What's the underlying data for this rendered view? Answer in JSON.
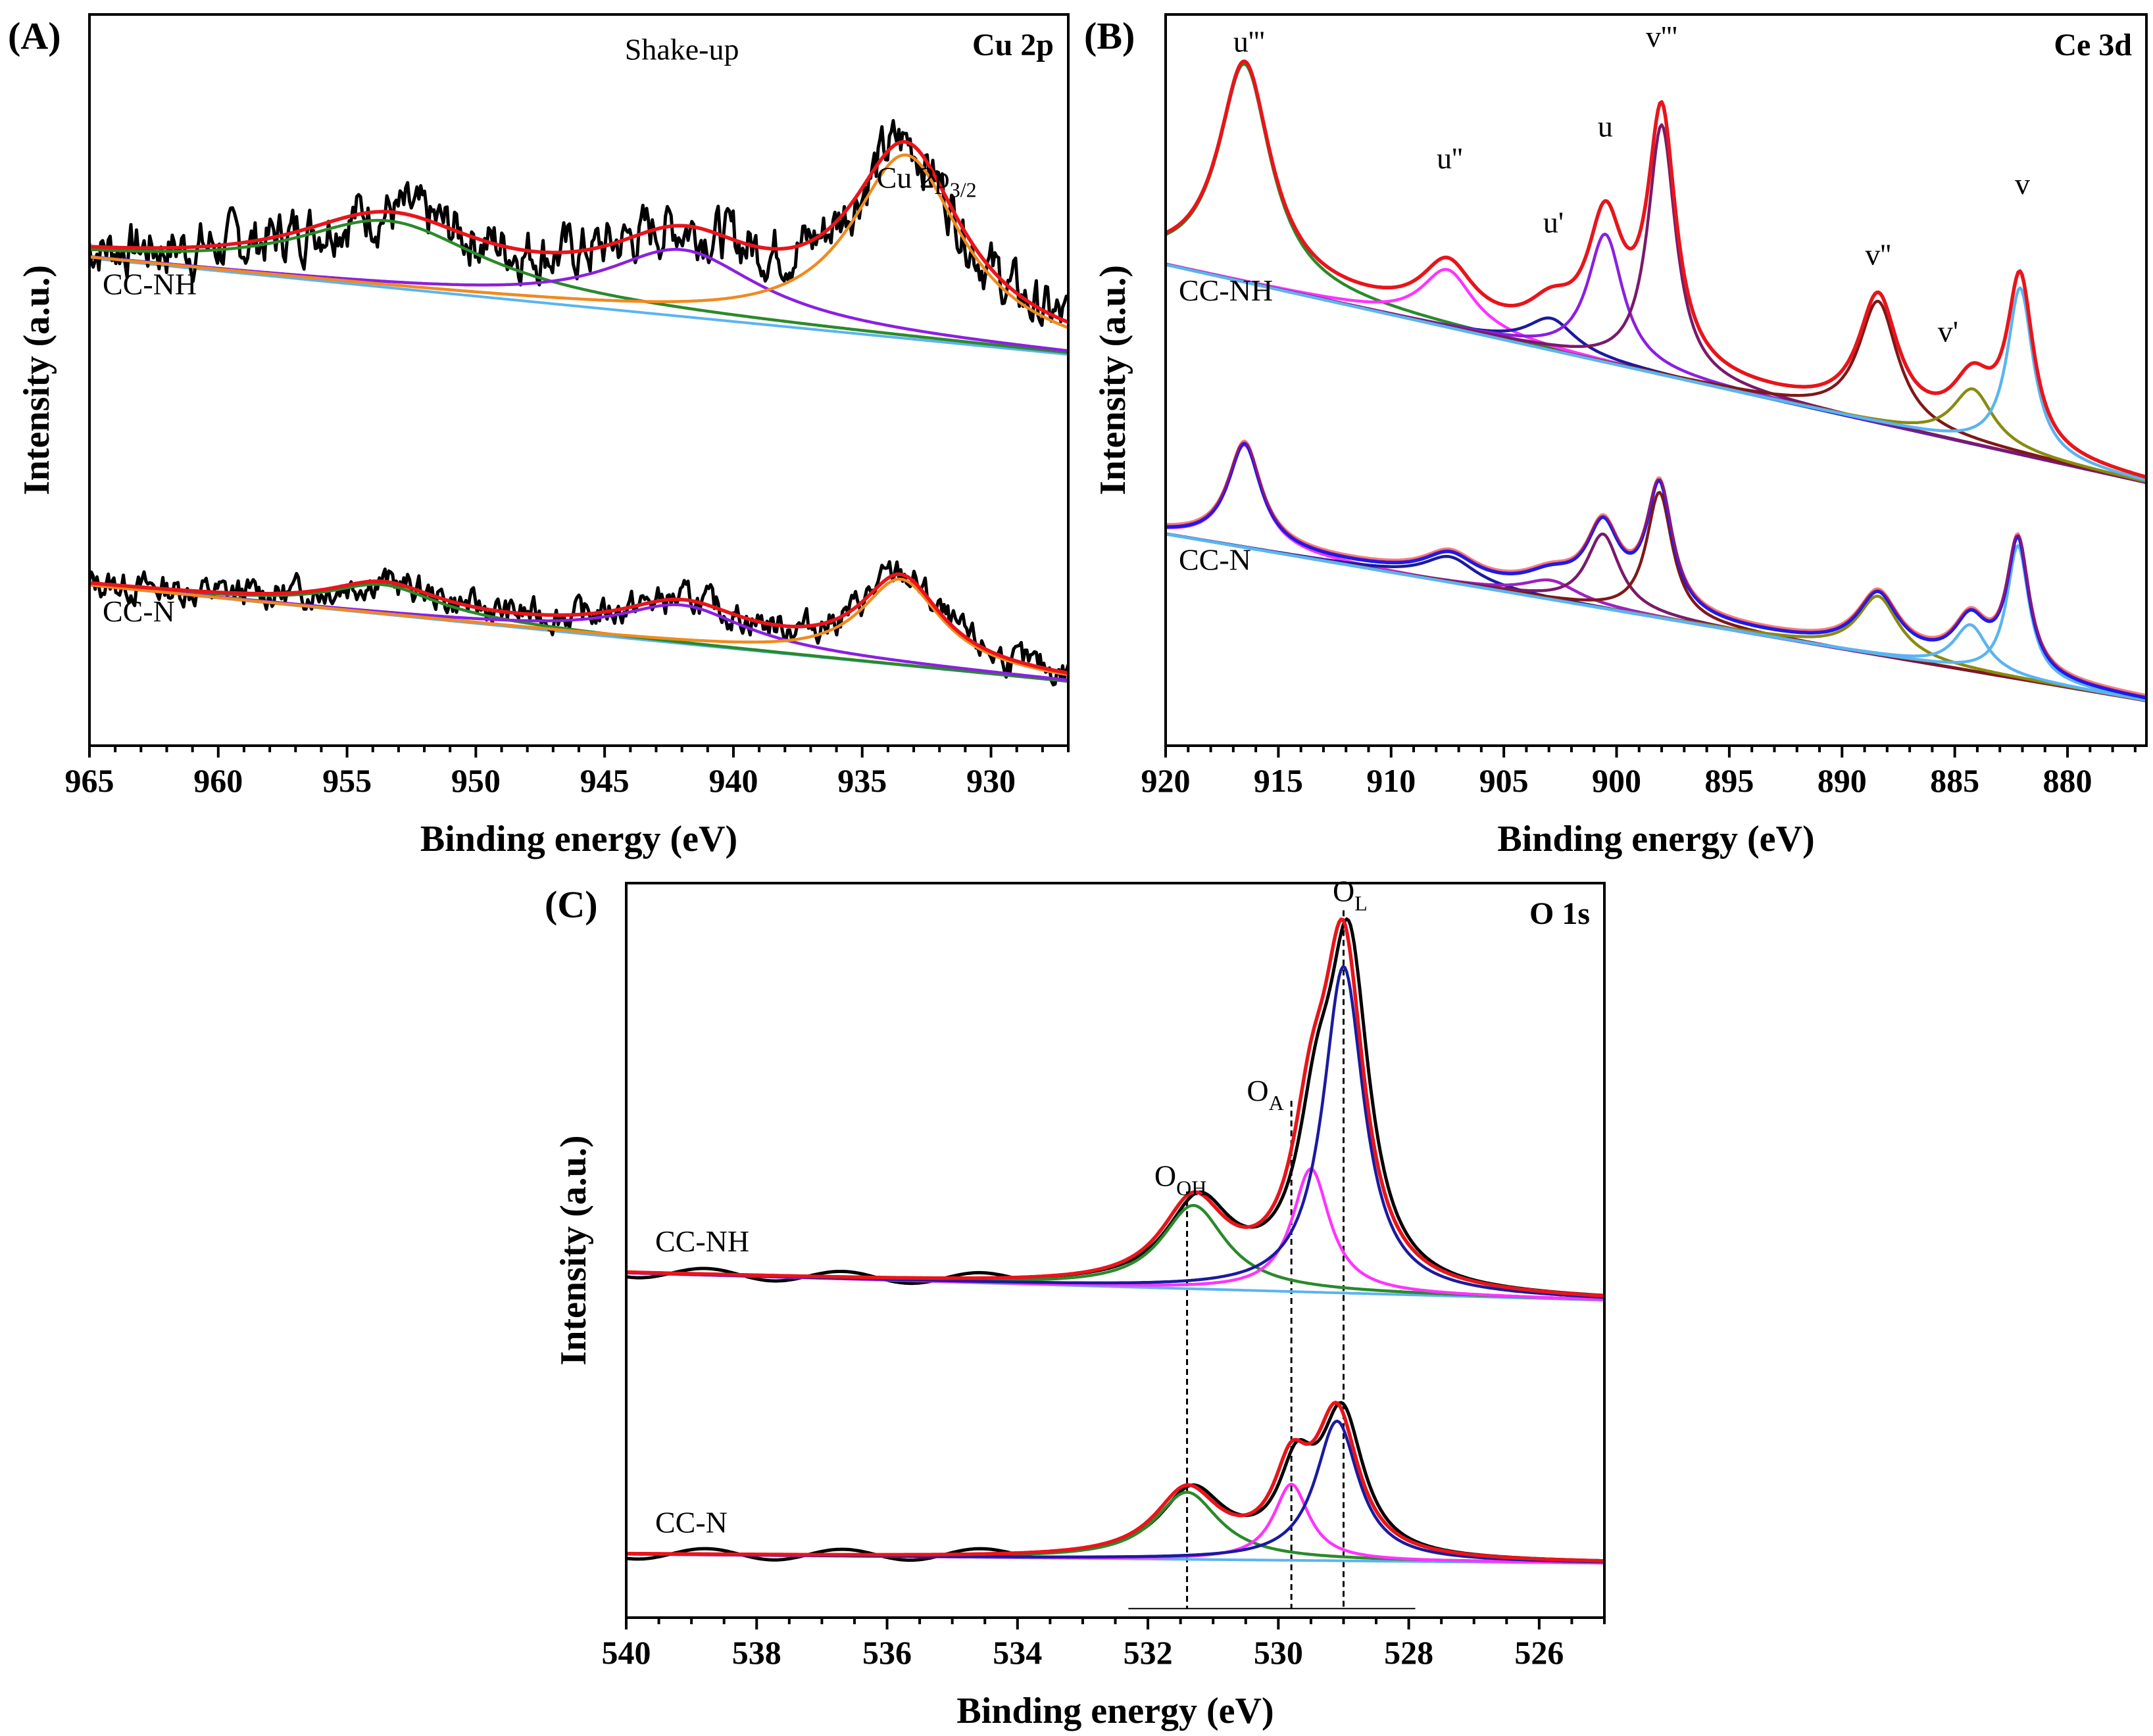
{
  "chart_data": [
    {
      "id": "A",
      "type": "line",
      "panel_label": "(A)",
      "title": "Cu 2p",
      "xlabel": "Binding energy (eV)",
      "ylabel": "Intensity (a.u.)",
      "xlim": [
        965,
        927
      ],
      "x_ticks": [
        965,
        960,
        955,
        950,
        945,
        940,
        935,
        930
      ],
      "annotations": [
        {
          "text": "Shake-up",
          "x": 942,
          "y": 1.55
        },
        {
          "text": "Cu 2p",
          "sub": "3/2",
          "x": 932.5,
          "y": 0.55
        }
      ],
      "traces": [
        {
          "name": "CC-NH",
          "offset": 0.55,
          "bg": [
            0.0,
            -0.75
          ],
          "peaks": [
            [
              953.4,
              0.52,
              4.5,
              "#2a8a2a"
            ],
            [
              942.0,
              0.52,
              3.6,
              "#8b20e0"
            ],
            [
              933.3,
              1.43,
              2.6,
              "#f08a20"
            ]
          ],
          "noise": 0.16,
          "seed": 7
        },
        {
          "name": "CC-N",
          "offset": 0.0,
          "bg": [
            -2.55,
            -3.3
          ],
          "peaks": [
            [
              953.6,
              0.23,
              2.6,
              "#2a8a2a"
            ],
            [
              942.0,
              0.3,
              3.0,
              "#8b20e0"
            ],
            [
              933.5,
              0.67,
              1.9,
              "#f08a20"
            ]
          ],
          "noise": 0.09,
          "seed": 13
        }
      ],
      "ylim": [
        -3.8,
        1.9
      ]
    },
    {
      "id": "B",
      "type": "line",
      "panel_label": "(B)",
      "title": "Ce 3d",
      "xlabel": "Binding energy (eV)",
      "ylabel": "Intensity (a.u.)",
      "xlim": [
        920,
        876.5
      ],
      "x_ticks": [
        920,
        915,
        910,
        905,
        900,
        895,
        890,
        885,
        880
      ],
      "annotations": [
        {
          "text": "u'''",
          "x": 916.3,
          "y": 1.46
        },
        {
          "text": "u''",
          "x": 907.4,
          "y": 0.55
        },
        {
          "text": "u'",
          "x": 902.8,
          "y": 0.05
        },
        {
          "text": "u",
          "x": 900.5,
          "y": 0.8
        },
        {
          "text": "v'''",
          "x": 898.0,
          "y": 1.5
        },
        {
          "text": "v''",
          "x": 888.4,
          "y": -0.2
        },
        {
          "text": "v'",
          "x": 885.3,
          "y": -0.8
        },
        {
          "text": "v",
          "x": 882.0,
          "y": 0.35
        }
      ],
      "traces": [
        {
          "name": "CC-NH",
          "offset": 0.0,
          "bg": [
            -0.2,
            -1.9
          ],
          "peaks": [
            [
              916.5,
              1.7,
              1.4,
              "#2a8a2a"
            ],
            [
              907.5,
              0.45,
              1.4,
              "#ff33ff"
            ],
            [
              902.9,
              0.25,
              1.3,
              "#1a1aa0"
            ],
            [
              900.5,
              1.0,
              0.95,
              "#8b20e0"
            ],
            [
              898.0,
              1.95,
              0.75,
              "#7a1a6a"
            ],
            [
              888.4,
              0.95,
              1.05,
              "#801818"
            ],
            [
              884.2,
              0.43,
              1.1,
              "#8a8a10"
            ],
            [
              882.1,
              1.3,
              0.7,
              "#5ab4f0"
            ]
          ],
          "noise": 0.0,
          "seed": 3
        },
        {
          "name": "CC-N",
          "offset": 0.0,
          "bg": [
            -2.3,
            -3.6
          ],
          "peaks": [
            [
              916.5,
              0.8,
              0.9,
              "#ff33ff"
            ],
            [
              907.4,
              0.2,
              1.4,
              "#1a1aa0"
            ],
            [
              902.9,
              0.15,
              1.5,
              "#a020c0"
            ],
            [
              900.6,
              0.58,
              0.9,
              "#7a1a6a"
            ],
            [
              898.1,
              0.98,
              0.7,
              "#801818"
            ],
            [
              888.4,
              0.46,
              1.1,
              "#8a8a10"
            ],
            [
              884.3,
              0.36,
              0.9,
              "#5ab4f0"
            ],
            [
              882.2,
              1.04,
              0.6,
              "#5ab4f0"
            ]
          ],
          "noise": 0.0,
          "seed": 5
        }
      ],
      "ylim": [
        -3.95,
        1.75
      ]
    },
    {
      "id": "C",
      "type": "line",
      "panel_label": "(C)",
      "title": "O 1s",
      "xlabel": "Binding energy (eV)",
      "ylabel": "Intensity (a.u.)",
      "xlim": [
        540,
        525
      ],
      "x_ticks": [
        540,
        538,
        536,
        534,
        532,
        530,
        528,
        526
      ],
      "annotations": [
        {
          "text": "O",
          "sub": "OH",
          "x": 531.5,
          "y": 0.48
        },
        {
          "text": "O",
          "sub": "A",
          "x": 530.2,
          "y": 0.95
        },
        {
          "text": "O",
          "sub": "L",
          "x": 528.9,
          "y": 2.05
        }
      ],
      "vlines": [
        531.4,
        529.8,
        529.0
      ],
      "traces": [
        {
          "name": "CC-NH",
          "offset": 0.0,
          "bg": [
            0.0,
            -0.15
          ],
          "peaks": [
            [
              531.3,
              0.46,
              0.6,
              "#2a8a2a"
            ],
            [
              529.5,
              0.68,
              0.35,
              "#ff33ff"
            ],
            [
              529.0,
              1.8,
              0.38,
              "#1a1aa0"
            ]
          ],
          "noise": 0.0,
          "seed": 11
        },
        {
          "name": "CC-N",
          "offset": 0.0,
          "bg": [
            -1.55,
            -1.6
          ],
          "peaks": [
            [
              531.4,
              0.37,
              0.6,
              "#2a8a2a"
            ],
            [
              529.8,
              0.42,
              0.33,
              "#ff33ff"
            ],
            [
              529.1,
              0.77,
              0.4,
              "#1a1aa0"
            ]
          ],
          "noise": 0.0,
          "seed": 17
        }
      ],
      "ylim": [
        -1.9,
        2.15
      ]
    }
  ]
}
